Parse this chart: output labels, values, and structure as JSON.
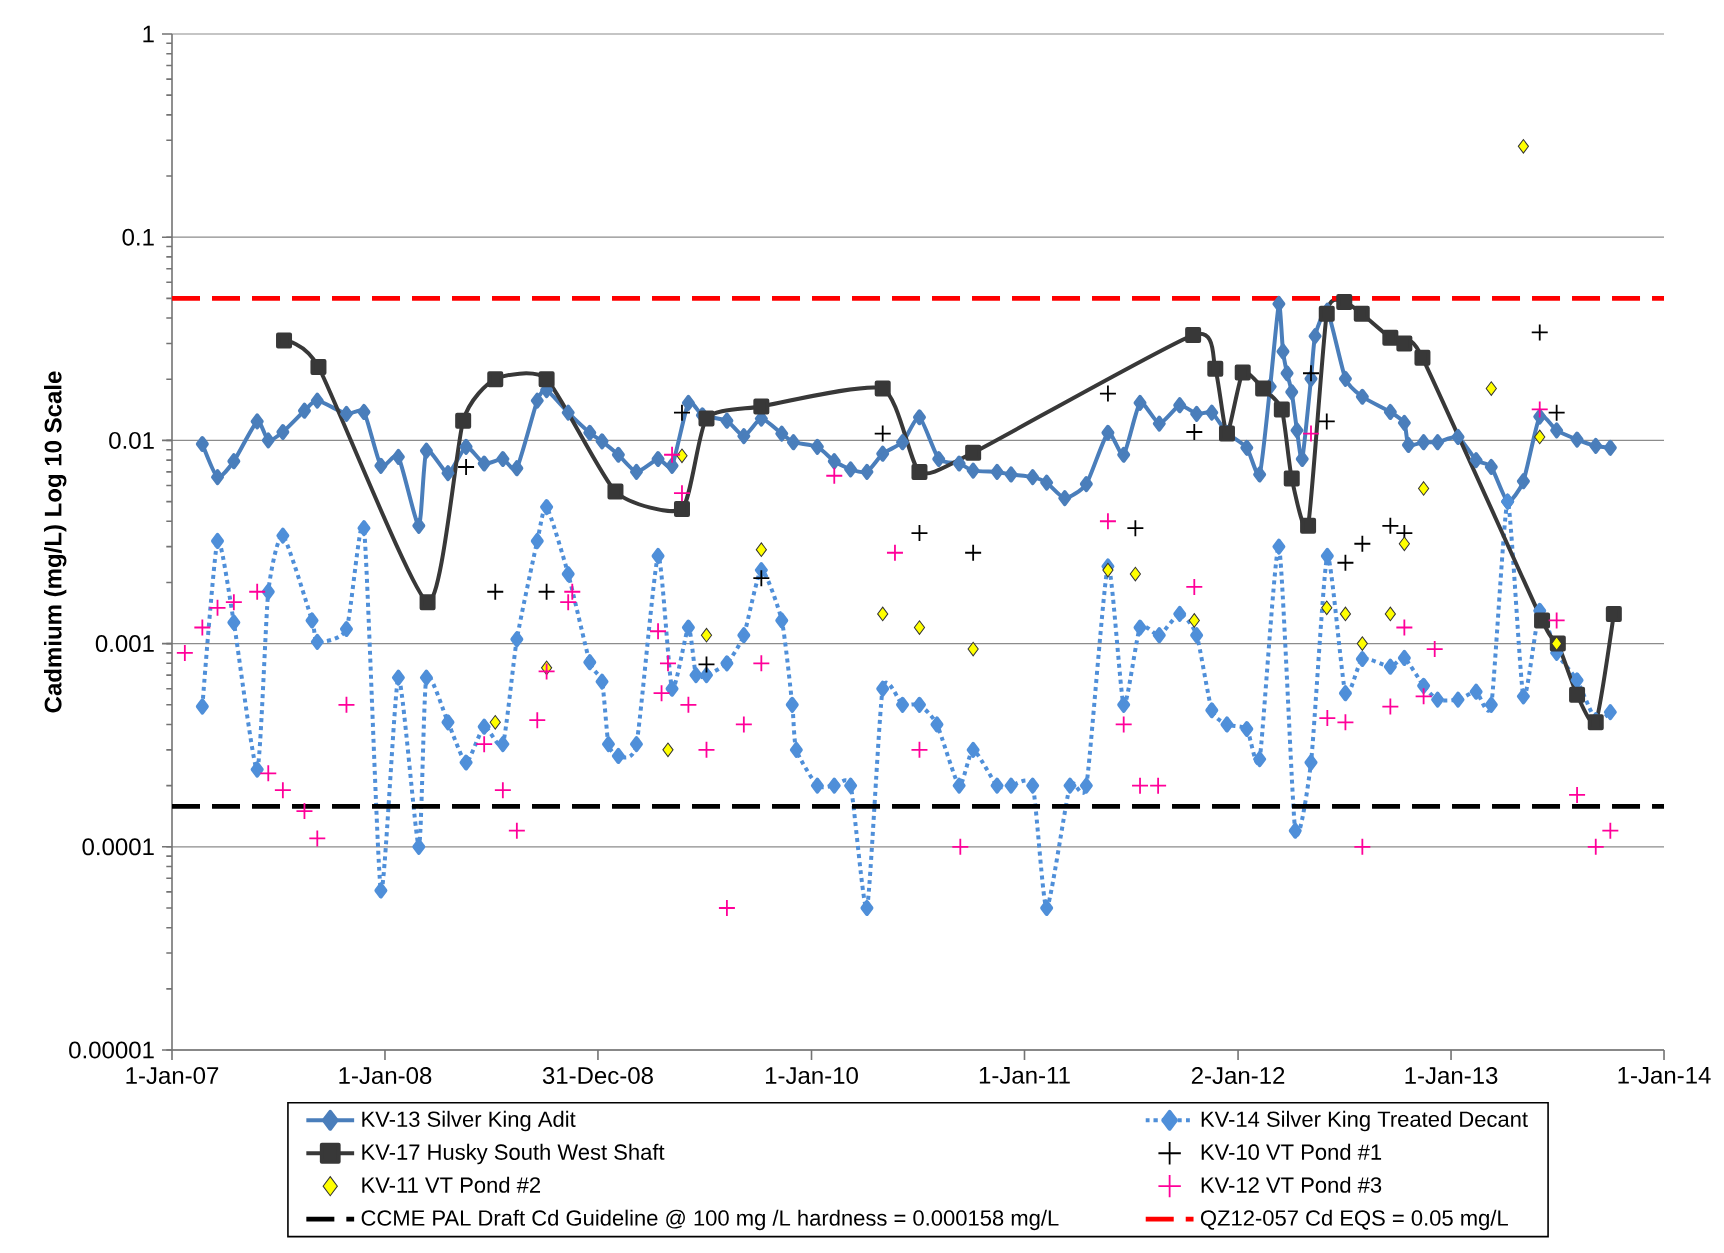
{
  "chart_data": {
    "type": "line",
    "ylabel": "Cadmium (mg/L) Log 10 Scale",
    "log": "y",
    "grid": "y",
    "legend": "bottom",
    "xlim": [
      "2007-01-01",
      "2014-01-01"
    ],
    "xticks": [
      {
        "value": "2007-01-01",
        "label": "1-Jan-07"
      },
      {
        "value": "2008-01-01",
        "label": "1-Jan-08"
      },
      {
        "value": "2008-12-31",
        "label": "31-Dec-08"
      },
      {
        "value": "2010-01-01",
        "label": "1-Jan-10"
      },
      {
        "value": "2011-01-01",
        "label": "1-Jan-11"
      },
      {
        "value": "2012-01-02",
        "label": "2-Jan-12"
      },
      {
        "value": "2013-01-01",
        "label": "1-Jan-13"
      },
      {
        "value": "2014-01-01",
        "label": "1-Jan-14"
      }
    ],
    "ylim": [
      1e-05,
      1
    ],
    "yticks": [
      {
        "value": 1e-05,
        "label": "0.00001"
      },
      {
        "value": 0.0001,
        "label": "0.0001"
      },
      {
        "value": 0.001,
        "label": "0.001"
      },
      {
        "value": 0.01,
        "label": "0.01"
      },
      {
        "value": 0.1,
        "label": "0.1"
      },
      {
        "value": 1,
        "label": "1"
      }
    ],
    "series": [
      {
        "name": "KV-13 Silver King Adit",
        "marker": "diamond",
        "line_style": "solid",
        "color": "#4a7ebb",
        "x": [
          "2007-02-22",
          "2007-03-20",
          "2007-04-17",
          "2007-05-27",
          "2007-06-15",
          "2007-07-10",
          "2007-08-16",
          "2007-09-07",
          "2007-10-27",
          "2007-11-26",
          "2007-12-25",
          "2008-01-24",
          "2008-02-28",
          "2008-03-12",
          "2008-04-18",
          "2008-05-19",
          "2008-06-19",
          "2008-07-21",
          "2008-08-14",
          "2008-09-18",
          "2008-10-04",
          "2008-11-10",
          "2008-12-17",
          "2009-01-07",
          "2009-02-04",
          "2009-03-07",
          "2009-04-13",
          "2009-05-07",
          "2009-06-04",
          "2009-06-28",
          "2009-08-09",
          "2009-09-07",
          "2009-10-07",
          "2009-11-11",
          "2009-12-01",
          "2010-01-11",
          "2010-02-09",
          "2010-03-09",
          "2010-04-06",
          "2010-05-03",
          "2010-06-06",
          "2010-07-05",
          "2010-08-07",
          "2010-09-11",
          "2010-10-05",
          "2010-11-15",
          "2010-12-09",
          "2011-01-15",
          "2011-02-08",
          "2011-03-11",
          "2011-04-17",
          "2011-05-24",
          "2011-06-20",
          "2011-07-18",
          "2011-08-20",
          "2011-09-24",
          "2011-10-23",
          "2011-11-18",
          "2011-12-14",
          "2012-01-17",
          "2012-02-08",
          "2012-02-26",
          "2012-03-12",
          "2012-03-19",
          "2012-03-26",
          "2012-04-03",
          "2012-04-12",
          "2012-04-21",
          "2012-05-06",
          "2012-05-13",
          "2012-06-03",
          "2012-07-04",
          "2012-08-02",
          "2012-09-19",
          "2012-10-13",
          "2012-10-20",
          "2012-11-15",
          "2012-12-09",
          "2013-01-13",
          "2013-02-13",
          "2013-03-11",
          "2013-04-08",
          "2013-05-05",
          "2013-06-02",
          "2013-07-01",
          "2013-08-05",
          "2013-09-06",
          "2013-10-01"
        ],
        "values": [
          0.0096,
          0.0066,
          0.0079,
          0.0124,
          0.01,
          0.011,
          0.014,
          0.0157,
          0.0135,
          0.0138,
          0.0075,
          0.0083,
          0.0038,
          0.0089,
          0.0069,
          0.0093,
          0.0077,
          0.0081,
          0.0073,
          0.0157,
          0.0177,
          0.0137,
          0.0109,
          0.0099,
          0.0085,
          0.007,
          0.0081,
          0.0075,
          0.0153,
          0.0133,
          0.0125,
          0.0105,
          0.0128,
          0.0108,
          0.0098,
          0.0093,
          0.0079,
          0.0072,
          0.007,
          0.0086,
          0.0098,
          0.013,
          0.0081,
          0.0077,
          0.0071,
          0.007,
          0.0068,
          0.0066,
          0.0062,
          0.0052,
          0.0061,
          0.0109,
          0.0085,
          0.0153,
          0.0121,
          0.0149,
          0.0135,
          0.0137,
          0.0109,
          0.0092,
          0.0068,
          0.0184,
          0.047,
          0.0274,
          0.0214,
          0.0173,
          0.0112,
          0.0081,
          0.0201,
          0.0326,
          0.0435,
          0.0201,
          0.0164,
          0.0138,
          0.0122,
          0.0095,
          0.0098,
          0.0098,
          0.0104,
          0.008,
          0.0074,
          0.005,
          0.0063,
          0.0131,
          0.0112,
          0.0101,
          0.0094,
          0.0092
        ]
      },
      {
        "name": "KV-14 Silver King Treated Decant",
        "marker": "diamond",
        "line_style": "dotted",
        "color": "#4f8fd9",
        "x": [
          "2007-02-22",
          "2007-03-20",
          "2007-04-17",
          "2007-05-27",
          "2007-06-15",
          "2007-07-10",
          "2007-08-29",
          "2007-09-07",
          "2007-10-27",
          "2007-11-26",
          "2007-12-25",
          "2008-01-24",
          "2008-02-28",
          "2008-03-12",
          "2008-04-18",
          "2008-05-19",
          "2008-06-19",
          "2008-07-21",
          "2008-08-14",
          "2008-09-18",
          "2008-10-04",
          "2008-11-10",
          "2008-12-17",
          "2009-01-07",
          "2009-01-18",
          "2009-02-04",
          "2009-03-07",
          "2009-04-13",
          "2009-05-07",
          "2009-06-04",
          "2009-06-17",
          "2009-07-05",
          "2009-08-09",
          "2009-09-07",
          "2009-10-07",
          "2009-11-11",
          "2009-11-29",
          "2009-12-06",
          "2010-01-11",
          "2010-02-09",
          "2010-03-09",
          "2010-04-06",
          "2010-05-03",
          "2010-06-06",
          "2010-07-05",
          "2010-08-04",
          "2010-09-11",
          "2010-10-05",
          "2010-11-15",
          "2010-12-09",
          "2011-01-15",
          "2011-02-08",
          "2011-03-20",
          "2011-04-17",
          "2011-05-24",
          "2011-06-20",
          "2011-07-18",
          "2011-08-20",
          "2011-09-24",
          "2011-10-23",
          "2011-11-18",
          "2011-12-14",
          "2012-01-17",
          "2012-02-08",
          "2012-03-12",
          "2012-04-09",
          "2012-05-06",
          "2012-06-03",
          "2012-07-04",
          "2012-08-02",
          "2012-09-19",
          "2012-10-13",
          "2012-11-15",
          "2012-12-09",
          "2013-01-13",
          "2013-02-13",
          "2013-03-11",
          "2013-04-08",
          "2013-05-05",
          "2013-06-02",
          "2013-07-01",
          "2013-08-05",
          "2013-09-06",
          "2013-10-01"
        ],
        "values": [
          0.00049,
          0.0032,
          0.00127,
          0.00024,
          0.0018,
          0.0034,
          0.0013,
          0.00102,
          0.00118,
          0.0037,
          6.1e-05,
          0.00068,
          0.0001,
          0.00068,
          0.00041,
          0.00026,
          0.00039,
          0.00032,
          0.00105,
          0.0032,
          0.0047,
          0.0022,
          0.00081,
          0.00065,
          0.00032,
          0.00028,
          0.00032,
          0.0027,
          0.0006,
          0.0012,
          0.0007,
          0.0007,
          0.0008,
          0.0011,
          0.0023,
          0.0013,
          0.0005,
          0.0003,
          0.0002,
          0.0002,
          0.0002,
          5e-05,
          0.0006,
          0.0005,
          0.0005,
          0.0004,
          0.0002,
          0.0003,
          0.0002,
          0.0002,
          0.0002,
          5e-05,
          0.0002,
          0.0002,
          0.0024,
          0.0005,
          0.0012,
          0.0011,
          0.0014,
          0.0011,
          0.00047,
          0.0004,
          0.00038,
          0.00027,
          0.003,
          0.00012,
          0.00026,
          0.0027,
          0.00057,
          0.00084,
          0.00077,
          0.00085,
          0.00062,
          0.00053,
          0.00053,
          0.00058,
          0.0005,
          0.005,
          0.00055,
          0.00145,
          0.0009,
          0.00066,
          0.00042,
          0.00046
        ]
      },
      {
        "name": "KV-17 Husky South West Shaft",
        "marker": "square",
        "line_style": "solid",
        "color": "#383838",
        "x": [
          "2007-07-12",
          "2007-09-09",
          "2008-03-14",
          "2008-05-14",
          "2008-07-08",
          "2008-10-04",
          "2009-01-30",
          "2009-05-24",
          "2009-07-05",
          "2009-10-07",
          "2010-05-03",
          "2010-07-05",
          "2010-10-05",
          "2011-10-17",
          "2011-11-24",
          "2011-12-14",
          "2012-01-10",
          "2012-02-14",
          "2012-03-17",
          "2012-04-03",
          "2012-05-01",
          "2012-06-02",
          "2012-07-02",
          "2012-08-01",
          "2012-09-19",
          "2012-10-13",
          "2012-11-13",
          "2013-06-06",
          "2013-07-03",
          "2013-08-05",
          "2013-09-06",
          "2013-10-07"
        ],
        "values": [
          0.031,
          0.023,
          0.0016,
          0.0125,
          0.02,
          0.02,
          0.0056,
          0.0046,
          0.0128,
          0.0147,
          0.018,
          0.007,
          0.0087,
          0.033,
          0.0225,
          0.0108,
          0.0216,
          0.018,
          0.0142,
          0.0065,
          0.0038,
          0.042,
          0.048,
          0.042,
          0.032,
          0.03,
          0.0255,
          0.0013,
          0.001,
          0.00056,
          0.00041,
          0.0014
        ]
      },
      {
        "name": "KV-10 VT Pond #1",
        "type": "scatter",
        "marker": "cross",
        "color": "#000000",
        "x": [
          "2008-05-19",
          "2008-07-08",
          "2008-10-04",
          "2009-05-24",
          "2009-07-05",
          "2009-10-07",
          "2010-05-03",
          "2010-07-05",
          "2010-10-05",
          "2011-05-24",
          "2011-07-10",
          "2011-10-19",
          "2012-05-06",
          "2012-06-02",
          "2012-07-04",
          "2012-08-02",
          "2012-09-19",
          "2012-10-13",
          "2013-06-02",
          "2013-07-01"
        ],
        "values": [
          0.0074,
          0.0018,
          0.0018,
          0.0137,
          0.00079,
          0.0021,
          0.0108,
          0.0035,
          0.0028,
          0.017,
          0.0037,
          0.011,
          0.0214,
          0.0124,
          0.0025,
          0.0031,
          0.0038,
          0.0035,
          0.034,
          0.0137
        ]
      },
      {
        "name": "KV-11 VT Pond #2",
        "type": "scatter",
        "marker": "diamond",
        "color": "#ffff00",
        "x": [
          "2008-07-08",
          "2008-10-04",
          "2009-04-30",
          "2009-05-24",
          "2009-07-05",
          "2009-10-07",
          "2010-05-03",
          "2010-07-05",
          "2010-10-05",
          "2011-05-24",
          "2011-07-10",
          "2011-10-19",
          "2012-06-02",
          "2012-07-04",
          "2012-08-02",
          "2012-09-19",
          "2012-10-13",
          "2012-11-15",
          "2013-03-11",
          "2013-05-05",
          "2013-06-02",
          "2013-07-01"
        ],
        "values": [
          0.00041,
          0.00076,
          0.0003,
          0.0084,
          0.0011,
          0.0029,
          0.0014,
          0.0012,
          0.00094,
          0.0023,
          0.0022,
          0.0013,
          0.0015,
          0.0014,
          0.001,
          0.0014,
          0.0031,
          0.0058,
          0.018,
          0.28,
          0.0104,
          0.001
        ]
      },
      {
        "name": "KV-12 VT Pond #3",
        "type": "scatter",
        "marker": "cross",
        "color": "#ff0099",
        "x": [
          "2007-01-23",
          "2007-02-22",
          "2007-03-20",
          "2007-04-17",
          "2007-05-27",
          "2007-06-15",
          "2007-07-10",
          "2007-08-16",
          "2007-09-07",
          "2007-10-27",
          "2008-06-19",
          "2008-07-21",
          "2008-08-14",
          "2008-09-18",
          "2008-10-04",
          "2008-11-10",
          "2008-11-17",
          "2009-04-13",
          "2009-04-19",
          "2009-04-30",
          "2009-05-07",
          "2009-05-24",
          "2009-06-04",
          "2009-07-05",
          "2009-08-09",
          "2009-09-07",
          "2009-10-07",
          "2010-02-09",
          "2010-05-24",
          "2010-07-05",
          "2010-09-13",
          "2011-05-24",
          "2011-06-20",
          "2011-07-18",
          "2011-08-18",
          "2011-10-19",
          "2012-05-06",
          "2012-06-03",
          "2012-07-04",
          "2012-08-02",
          "2012-09-19",
          "2012-10-13",
          "2012-11-15",
          "2012-12-04",
          "2013-06-02",
          "2013-07-01",
          "2013-08-05",
          "2013-09-06",
          "2013-10-01"
        ],
        "values": [
          0.0009,
          0.0012,
          0.0015,
          0.0016,
          0.0018,
          0.00023,
          0.00019,
          0.00015,
          0.00011,
          0.0005,
          0.00032,
          0.00019,
          0.00012,
          0.00042,
          0.00073,
          0.0016,
          0.0018,
          0.00115,
          0.00057,
          0.0008,
          0.0085,
          0.0055,
          0.0005,
          0.0003,
          5e-05,
          0.0004,
          0.0008,
          0.0067,
          0.0028,
          0.0003,
          0.0001,
          0.004,
          0.0004,
          0.0002,
          0.0002,
          0.0019,
          0.0108,
          0.00043,
          0.00041,
          0.0001,
          0.00049,
          0.0012,
          0.00055,
          0.00094,
          0.0142,
          0.0013,
          0.00018,
          0.0001,
          0.00012
        ]
      }
    ],
    "ref_lines": [
      {
        "axis": "y",
        "value": 0.000158,
        "label": "CCME PAL Draft Cd Guideline @ 100 mg /L hardness = 0.000158 mg/L",
        "color": "#000000",
        "line_style": "dashed"
      },
      {
        "axis": "y",
        "value": 0.05,
        "label": "QZ12-057 Cd EQS = 0.05 mg/L",
        "color": "#ff0000",
        "line_style": "dashed"
      }
    ]
  }
}
